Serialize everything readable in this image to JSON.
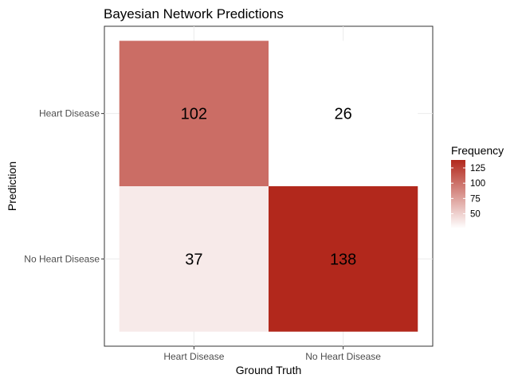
{
  "chart_data": {
    "type": "heatmap",
    "title": "Bayesian Network Predictions",
    "xlabel": "Ground Truth",
    "ylabel": "Prediction",
    "x_categories": [
      "Heart Disease",
      "No Heart Disease"
    ],
    "y_categories": [
      "Heart Disease",
      "No Heart Disease"
    ],
    "cells": [
      {
        "x": "Heart Disease",
        "y": "Heart Disease",
        "value": 102
      },
      {
        "x": "No Heart Disease",
        "y": "Heart Disease",
        "value": 26
      },
      {
        "x": "Heart Disease",
        "y": "No Heart Disease",
        "value": 37
      },
      {
        "x": "No Heart Disease",
        "y": "No Heart Disease",
        "value": 138
      }
    ],
    "legend": {
      "title": "Frequency",
      "ticks": [
        50,
        75,
        100,
        125
      ],
      "range": [
        26,
        138
      ],
      "low_color": "#ffffff",
      "high_color": "#b2281c"
    },
    "grid": true,
    "legend_position": "right"
  }
}
